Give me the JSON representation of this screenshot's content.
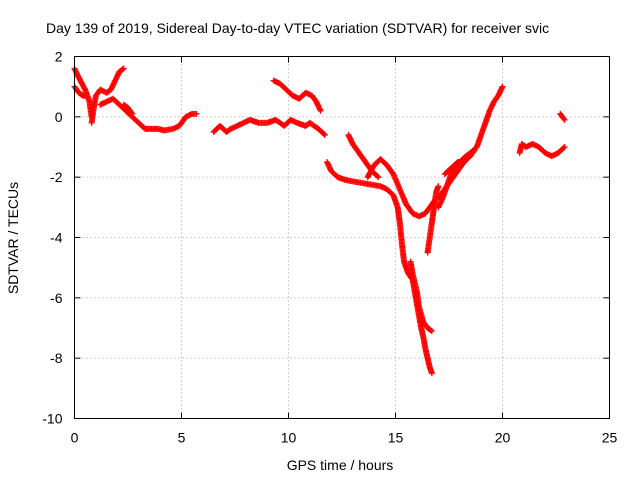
{
  "chart_data": {
    "type": "scatter",
    "title": "Day 139 of 2019, Sidereal Day-to-day VTEC variation (SDTVAR) for receiver svic",
    "xlabel": "GPS time / hours",
    "ylabel": "SDTVAR / TECUs",
    "xlim": [
      0,
      25
    ],
    "ylim": [
      -10,
      2
    ],
    "xticks": [
      0,
      5,
      10,
      15,
      20,
      25
    ],
    "yticks": [
      -10,
      -8,
      -6,
      -4,
      -2,
      0,
      2
    ],
    "xtick_labels": [
      "0",
      "5",
      "10",
      "15",
      "20",
      "25"
    ],
    "ytick_labels": [
      "-10",
      "-8",
      "-6",
      "-4",
      "-2",
      "0",
      "2"
    ],
    "grid": true,
    "marker": "+",
    "color": "#ff0000",
    "series": [
      {
        "name": "SDTVAR",
        "segments": [
          [
            [
              0.0,
              1.6
            ],
            [
              0.2,
              1.3
            ],
            [
              0.5,
              0.9
            ],
            [
              0.7,
              0.5
            ],
            [
              0.8,
              0.0
            ]
          ],
          [
            [
              0.0,
              1.0
            ],
            [
              0.2,
              0.8
            ],
            [
              0.4,
              0.7
            ],
            [
              0.5,
              0.7
            ]
          ],
          [
            [
              0.8,
              -0.2
            ],
            [
              0.9,
              0.3
            ],
            [
              1.0,
              0.7
            ],
            [
              1.2,
              0.9
            ],
            [
              1.5,
              0.8
            ],
            [
              1.7,
              0.9
            ],
            [
              1.9,
              1.2
            ],
            [
              2.1,
              1.5
            ],
            [
              2.3,
              1.6
            ]
          ],
          [
            [
              1.2,
              0.4
            ],
            [
              1.5,
              0.5
            ],
            [
              1.8,
              0.6
            ],
            [
              2.1,
              0.4
            ],
            [
              2.4,
              0.2
            ],
            [
              2.7,
              0.0
            ],
            [
              3.0,
              -0.2
            ],
            [
              3.3,
              -0.4
            ],
            [
              3.6,
              -0.4
            ],
            [
              3.9,
              -0.4
            ],
            [
              4.2,
              -0.45
            ],
            [
              4.6,
              -0.4
            ],
            [
              4.9,
              -0.3
            ],
            [
              5.2,
              0.0
            ],
            [
              5.5,
              0.1
            ],
            [
              5.7,
              0.1
            ]
          ],
          [
            [
              2.3,
              0.4
            ],
            [
              2.5,
              0.3
            ],
            [
              2.7,
              0.1
            ]
          ],
          [
            [
              6.5,
              -0.5
            ],
            [
              6.8,
              -0.3
            ],
            [
              7.1,
              -0.5
            ],
            [
              7.3,
              -0.4
            ],
            [
              7.6,
              -0.3
            ],
            [
              7.9,
              -0.2
            ],
            [
              8.2,
              -0.1
            ],
            [
              8.6,
              -0.2
            ],
            [
              9.0,
              -0.2
            ],
            [
              9.4,
              -0.1
            ],
            [
              9.8,
              -0.3
            ],
            [
              10.1,
              -0.1
            ],
            [
              10.4,
              -0.2
            ],
            [
              10.8,
              -0.3
            ],
            [
              11.0,
              -0.2
            ],
            [
              11.4,
              -0.4
            ],
            [
              11.7,
              -0.6
            ]
          ],
          [
            [
              9.3,
              1.2
            ],
            [
              9.6,
              1.1
            ],
            [
              9.9,
              0.9
            ],
            [
              10.2,
              0.7
            ],
            [
              10.5,
              0.6
            ],
            [
              10.8,
              0.8
            ],
            [
              11.1,
              0.7
            ],
            [
              11.3,
              0.5
            ],
            [
              11.5,
              0.2
            ]
          ],
          [
            [
              11.8,
              -1.5
            ],
            [
              12.0,
              -1.8
            ],
            [
              12.3,
              -2.0
            ],
            [
              12.7,
              -2.1
            ],
            [
              13.1,
              -2.15
            ],
            [
              13.5,
              -2.2
            ],
            [
              13.9,
              -2.25
            ],
            [
              14.3,
              -2.3
            ],
            [
              14.6,
              -2.4
            ],
            [
              14.9,
              -2.6
            ],
            [
              15.1,
              -3.0
            ],
            [
              15.2,
              -3.5
            ],
            [
              15.3,
              -4.2
            ],
            [
              15.4,
              -4.8
            ],
            [
              15.5,
              -5.0
            ],
            [
              15.6,
              -5.2
            ],
            [
              15.8,
              -5.4
            ],
            [
              15.9,
              -5.8
            ],
            [
              16.0,
              -6.2
            ],
            [
              16.1,
              -6.6
            ],
            [
              16.2,
              -7.0
            ],
            [
              16.3,
              -7.3
            ],
            [
              16.4,
              -7.7
            ],
            [
              16.5,
              -8.0
            ],
            [
              16.6,
              -8.3
            ],
            [
              16.7,
              -8.5
            ]
          ],
          [
            [
              12.8,
              -0.6
            ],
            [
              13.0,
              -0.9
            ],
            [
              13.3,
              -1.2
            ],
            [
              13.6,
              -1.5
            ],
            [
              13.9,
              -1.8
            ],
            [
              14.2,
              -2.0
            ]
          ],
          [
            [
              13.7,
              -2.0
            ],
            [
              14.0,
              -1.6
            ],
            [
              14.3,
              -1.4
            ],
            [
              14.6,
              -1.6
            ],
            [
              14.9,
              -1.9
            ],
            [
              15.2,
              -2.4
            ],
            [
              15.5,
              -2.9
            ],
            [
              15.8,
              -3.2
            ],
            [
              16.1,
              -3.3
            ],
            [
              16.4,
              -3.2
            ],
            [
              16.6,
              -3.0
            ],
            [
              16.8,
              -2.8
            ],
            [
              17.1,
              -2.6
            ],
            [
              17.5,
              -2.2
            ],
            [
              17.9,
              -1.8
            ],
            [
              18.3,
              -1.4
            ]
          ],
          [
            [
              15.7,
              -4.8
            ],
            [
              15.8,
              -5.2
            ],
            [
              16.0,
              -5.8
            ],
            [
              16.1,
              -6.3
            ],
            [
              16.3,
              -6.8
            ],
            [
              16.5,
              -7.0
            ],
            [
              16.7,
              -7.1
            ]
          ],
          [
            [
              16.5,
              -4.5
            ],
            [
              16.6,
              -4.0
            ],
            [
              16.7,
              -3.5
            ],
            [
              16.8,
              -3.0
            ],
            [
              16.9,
              -2.5
            ],
            [
              17.0,
              -2.3
            ]
          ],
          [
            [
              17.0,
              -3.0
            ],
            [
              17.2,
              -2.7
            ],
            [
              17.4,
              -2.3
            ],
            [
              17.6,
              -1.9
            ],
            [
              17.8,
              -1.6
            ],
            [
              18.0,
              -1.5
            ],
            [
              18.3,
              -1.3
            ],
            [
              18.5,
              -1.2
            ],
            [
              18.8,
              -1.0
            ],
            [
              19.0,
              -0.6
            ],
            [
              19.2,
              -0.2
            ],
            [
              19.4,
              0.2
            ],
            [
              19.6,
              0.5
            ],
            [
              19.8,
              0.7
            ],
            [
              20.0,
              1.0
            ]
          ],
          [
            [
              17.3,
              -1.9
            ],
            [
              17.6,
              -1.7
            ],
            [
              17.9,
              -1.5
            ],
            [
              18.2,
              -1.5
            ],
            [
              18.5,
              -1.3
            ],
            [
              18.7,
              -1.1
            ]
          ],
          [
            [
              20.8,
              -1.2
            ],
            [
              20.9,
              -0.9
            ],
            [
              21.1,
              -1.0
            ],
            [
              21.4,
              -0.9
            ],
            [
              21.7,
              -1.0
            ],
            [
              22.0,
              -1.2
            ],
            [
              22.3,
              -1.3
            ],
            [
              22.6,
              -1.2
            ],
            [
              22.9,
              -1.0
            ]
          ],
          [
            [
              22.7,
              0.1
            ],
            [
              22.9,
              -0.1
            ]
          ]
        ]
      }
    ]
  }
}
